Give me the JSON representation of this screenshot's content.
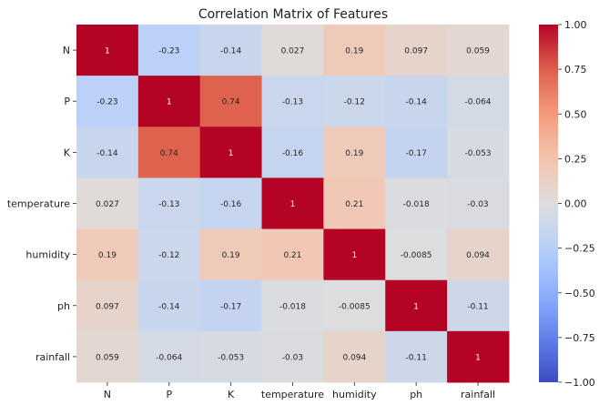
{
  "chart_data": {
    "type": "heatmap",
    "title": "Correlation Matrix of Features",
    "xlabel": "",
    "ylabel": "",
    "rows": [
      "N",
      "P",
      "K",
      "temperature",
      "humidity",
      "ph",
      "rainfall"
    ],
    "columns": [
      "N",
      "P",
      "K",
      "temperature",
      "humidity",
      "ph",
      "rainfall"
    ],
    "values": [
      [
        1,
        -0.23,
        -0.14,
        0.027,
        0.19,
        0.097,
        0.059
      ],
      [
        -0.23,
        1,
        0.74,
        -0.13,
        -0.12,
        -0.14,
        -0.064
      ],
      [
        -0.14,
        0.74,
        1,
        -0.16,
        0.19,
        -0.17,
        -0.053
      ],
      [
        0.027,
        -0.13,
        -0.16,
        1,
        0.21,
        -0.018,
        -0.03
      ],
      [
        0.19,
        -0.12,
        0.19,
        0.21,
        1,
        -0.0085,
        0.094
      ],
      [
        0.097,
        -0.14,
        -0.17,
        -0.018,
        -0.0085,
        1,
        -0.11
      ],
      [
        0.059,
        -0.064,
        -0.053,
        -0.03,
        0.094,
        -0.11,
        1
      ]
    ],
    "cell_labels": [
      [
        "1",
        "-0.23",
        "-0.14",
        "0.027",
        "0.19",
        "0.097",
        "0.059"
      ],
      [
        "-0.23",
        "1",
        "0.74",
        "-0.13",
        "-0.12",
        "-0.14",
        "-0.064"
      ],
      [
        "-0.14",
        "0.74",
        "1",
        "-0.16",
        "0.19",
        "-0.17",
        "-0.053"
      ],
      [
        "0.027",
        "-0.13",
        "-0.16",
        "1",
        "0.21",
        "-0.018",
        "-0.03"
      ],
      [
        "0.19",
        "-0.12",
        "0.19",
        "0.21",
        "1",
        "-0.0085",
        "0.094"
      ],
      [
        "0.097",
        "-0.14",
        "-0.17",
        "-0.018",
        "-0.0085",
        "1",
        "-0.11"
      ],
      [
        "0.059",
        "-0.064",
        "-0.053",
        "-0.03",
        "0.094",
        "-0.11",
        "1"
      ]
    ],
    "colormap": "coolwarm",
    "vmin": -1,
    "vmax": 1,
    "colorbar_ticks": [
      1.0,
      0.75,
      0.5,
      0.25,
      0.0,
      -0.25,
      -0.5,
      -0.75,
      -1.0
    ],
    "colorbar_tick_labels": [
      "1.00",
      "0.75",
      "0.50",
      "0.25",
      "0.00",
      "−0.25",
      "−0.50",
      "−0.75",
      "−1.00"
    ],
    "grid": false,
    "legend": "colorbar-right"
  }
}
